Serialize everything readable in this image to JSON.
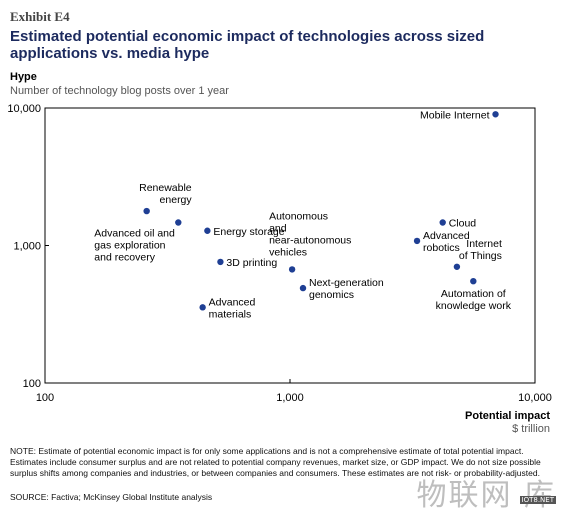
{
  "header": {
    "exhibit": "Exhibit E4",
    "title": "Estimated potential economic impact of technologies across sized applications vs. media hype"
  },
  "footer": {
    "note": "NOTE: Estimate of potential economic impact is for only some applications and is not a comprehensive estimate of total potential impact. Estimates include consumer surplus and are not related to potential company revenues, market size, or GDP impact. We do not size possible surplus shifts among companies and industries, or between companies and consumers. These estimates are not risk- or probability-adjusted.",
    "source": "SOURCE: Factiva; McKinsey Global Institute analysis"
  },
  "watermark": {
    "text": "物联网 库",
    "site": "IOT8.NET"
  },
  "chart_data": {
    "type": "scatter",
    "title": "",
    "ylabel": "Hype",
    "ylabel_sub": "Number of technology blog posts over 1 year",
    "xlabel": "Potential impact",
    "xlabel_sub": "$ trillion",
    "x_scale": "log",
    "y_scale": "log",
    "xlim": [
      100,
      10000
    ],
    "ylim": [
      100,
      10000
    ],
    "x_ticks": [
      {
        "value": 100,
        "label": "100"
      },
      {
        "value": 1000,
        "label": "1,000"
      },
      {
        "value": 10000,
        "label": "10,000"
      }
    ],
    "y_ticks": [
      {
        "value": 100,
        "label": "100"
      },
      {
        "value": 1000,
        "label": "1,000"
      },
      {
        "value": 10000,
        "label": "10,000"
      }
    ],
    "grid": false,
    "point_color": "#1f3f94",
    "points": [
      {
        "label": "Mobile Internet",
        "x": 6900,
        "y": 9000,
        "label_pos": "left"
      },
      {
        "label": "Renewable energy",
        "x": 260,
        "y": 1780,
        "label_pos": "above-right"
      },
      {
        "label": "Advanced oil and gas exploration and recovery",
        "x": 350,
        "y": 1470,
        "label_pos": "below-left"
      },
      {
        "label": "Energy storage",
        "x": 460,
        "y": 1280,
        "label_pos": "right"
      },
      {
        "label": "3D printing",
        "x": 520,
        "y": 760,
        "label_pos": "right"
      },
      {
        "label": "Advanced materials",
        "x": 440,
        "y": 355,
        "label_pos": "right"
      },
      {
        "label": "Autonomous and near-autonomous vehicles",
        "x": 1020,
        "y": 670,
        "label_pos": "above"
      },
      {
        "label": "Next-generation genomics",
        "x": 1130,
        "y": 490,
        "label_pos": "right"
      },
      {
        "label": "Cloud",
        "x": 4200,
        "y": 1470,
        "label_pos": "right"
      },
      {
        "label": "Advanced robotics",
        "x": 3300,
        "y": 1080,
        "label_pos": "right"
      },
      {
        "label": "Internet of Things",
        "x": 4800,
        "y": 700,
        "label_pos": "above-right"
      },
      {
        "label": "Automation of knowledge work",
        "x": 5600,
        "y": 550,
        "label_pos": "below"
      }
    ]
  }
}
